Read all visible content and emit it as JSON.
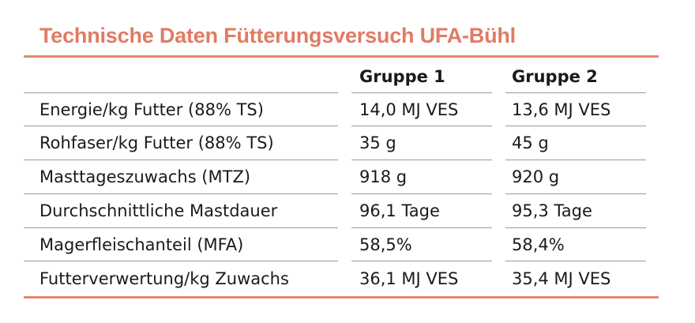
{
  "title": "Technische Daten Fütterungsversuch UFA-Bühl",
  "table": {
    "headers": [
      "",
      "Gruppe 1",
      "Gruppe 2"
    ],
    "rows": [
      [
        "Energie/kg Futter (88% TS)",
        "14,0 MJ VES",
        "13,6 MJ VES"
      ],
      [
        "Rohfaser/kg Futter (88% TS)",
        "35 g",
        "45 g"
      ],
      [
        "Masttageszuwachs (MTZ)",
        "918 g",
        "920 g"
      ],
      [
        "Durchschnittliche Mastdauer",
        "96,1 Tage",
        "95,3 Tage"
      ],
      [
        "Magerfleischanteil (MFA)",
        "58,5%",
        "58,4%"
      ],
      [
        "Futterverwertung/kg Zuwachs",
        "36,1 MJ VES",
        "35,4 MJ VES"
      ]
    ]
  },
  "colors": {
    "accent": "#e07b63",
    "rule": "#e28a70",
    "divider": "#9a9a9a",
    "text": "#1a1a1a"
  }
}
